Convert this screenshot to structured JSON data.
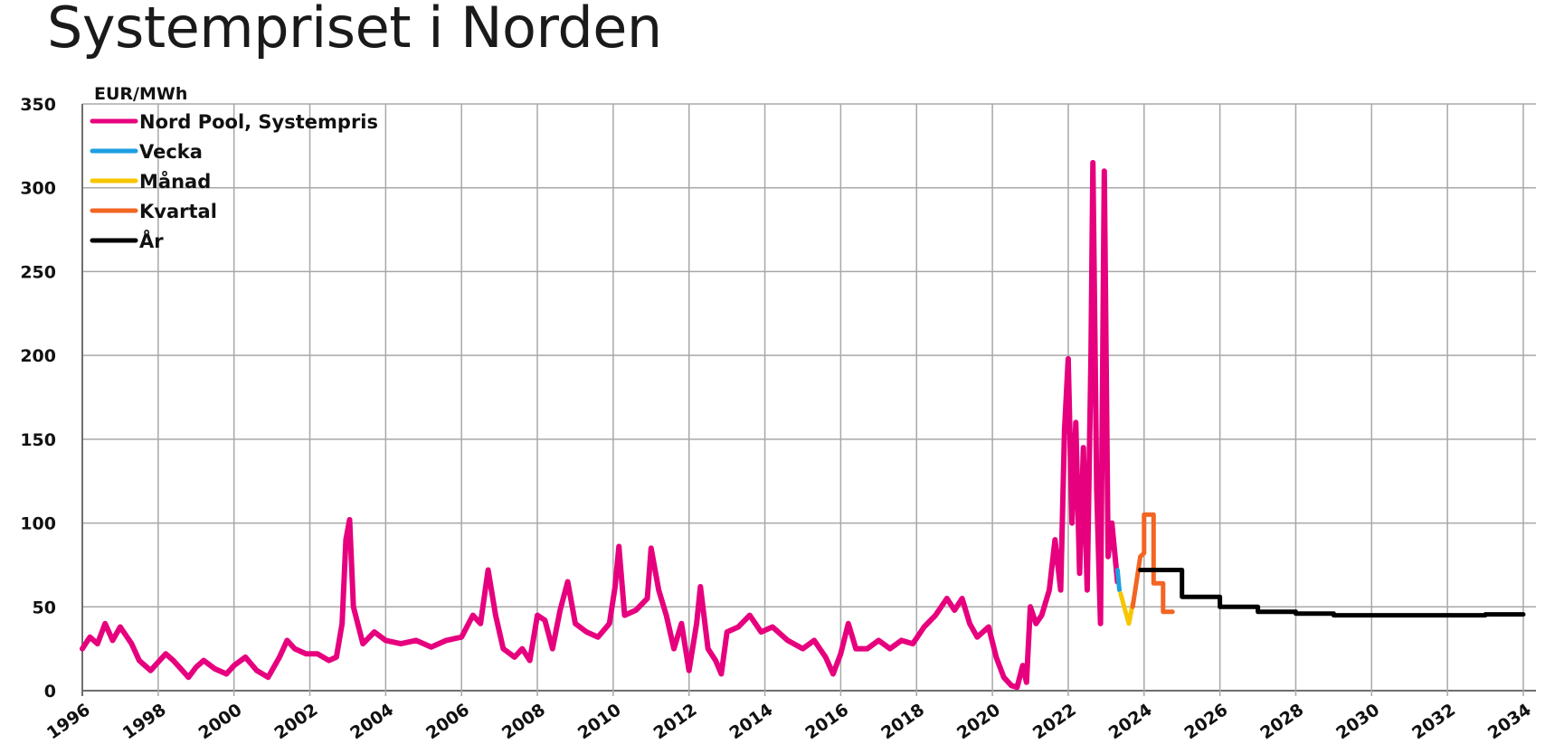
{
  "title": "Systempriset i Norden",
  "chart_data": {
    "type": "line",
    "title": "Systempriset i Norden",
    "unit_label": "EUR/MWh",
    "xlim": [
      1996,
      2034
    ],
    "ylim": [
      0,
      350
    ],
    "y_ticks": [
      0,
      50,
      100,
      150,
      200,
      250,
      300,
      350
    ],
    "x_ticks": [
      1996,
      1998,
      2000,
      2002,
      2004,
      2006,
      2008,
      2010,
      2012,
      2014,
      2016,
      2018,
      2020,
      2022,
      2024,
      2026,
      2028,
      2030,
      2032,
      2034
    ],
    "grid": true,
    "legend_position": "top-left",
    "series": [
      {
        "name": "Nord Pool, Systempris",
        "color": "#e6007e",
        "points": [
          [
            1996.0,
            25
          ],
          [
            1996.2,
            32
          ],
          [
            1996.4,
            28
          ],
          [
            1996.6,
            40
          ],
          [
            1996.8,
            30
          ],
          [
            1997.0,
            38
          ],
          [
            1997.3,
            28
          ],
          [
            1997.5,
            18
          ],
          [
            1997.8,
            12
          ],
          [
            1998.0,
            17
          ],
          [
            1998.2,
            22
          ],
          [
            1998.4,
            18
          ],
          [
            1998.6,
            13
          ],
          [
            1998.8,
            8
          ],
          [
            1999.0,
            14
          ],
          [
            1999.2,
            18
          ],
          [
            1999.5,
            13
          ],
          [
            1999.8,
            10
          ],
          [
            2000.0,
            15
          ],
          [
            2000.3,
            20
          ],
          [
            2000.6,
            12
          ],
          [
            2000.9,
            8
          ],
          [
            2001.2,
            20
          ],
          [
            2001.4,
            30
          ],
          [
            2001.6,
            25
          ],
          [
            2001.9,
            22
          ],
          [
            2002.2,
            22
          ],
          [
            2002.5,
            18
          ],
          [
            2002.7,
            20
          ],
          [
            2002.85,
            40
          ],
          [
            2002.95,
            90
          ],
          [
            2003.05,
            102
          ],
          [
            2003.15,
            50
          ],
          [
            2003.4,
            28
          ],
          [
            2003.7,
            35
          ],
          [
            2004.0,
            30
          ],
          [
            2004.4,
            28
          ],
          [
            2004.8,
            30
          ],
          [
            2005.2,
            26
          ],
          [
            2005.6,
            30
          ],
          [
            2006.0,
            32
          ],
          [
            2006.3,
            45
          ],
          [
            2006.5,
            40
          ],
          [
            2006.7,
            72
          ],
          [
            2006.9,
            45
          ],
          [
            2007.1,
            25
          ],
          [
            2007.4,
            20
          ],
          [
            2007.6,
            25
          ],
          [
            2007.8,
            18
          ],
          [
            2008.0,
            45
          ],
          [
            2008.2,
            42
          ],
          [
            2008.4,
            25
          ],
          [
            2008.6,
            48
          ],
          [
            2008.8,
            65
          ],
          [
            2009.0,
            40
          ],
          [
            2009.3,
            35
          ],
          [
            2009.6,
            32
          ],
          [
            2009.9,
            40
          ],
          [
            2010.05,
            62
          ],
          [
            2010.15,
            86
          ],
          [
            2010.3,
            45
          ],
          [
            2010.6,
            48
          ],
          [
            2010.9,
            55
          ],
          [
            2011.0,
            85
          ],
          [
            2011.2,
            60
          ],
          [
            2011.4,
            45
          ],
          [
            2011.6,
            25
          ],
          [
            2011.8,
            40
          ],
          [
            2012.0,
            12
          ],
          [
            2012.2,
            40
          ],
          [
            2012.3,
            62
          ],
          [
            2012.5,
            25
          ],
          [
            2012.7,
            18
          ],
          [
            2012.85,
            10
          ],
          [
            2013.0,
            35
          ],
          [
            2013.3,
            38
          ],
          [
            2013.6,
            45
          ],
          [
            2013.9,
            35
          ],
          [
            2014.2,
            38
          ],
          [
            2014.6,
            30
          ],
          [
            2015.0,
            25
          ],
          [
            2015.3,
            30
          ],
          [
            2015.6,
            20
          ],
          [
            2015.8,
            10
          ],
          [
            2016.0,
            22
          ],
          [
            2016.2,
            40
          ],
          [
            2016.4,
            25
          ],
          [
            2016.7,
            25
          ],
          [
            2017.0,
            30
          ],
          [
            2017.3,
            25
          ],
          [
            2017.6,
            30
          ],
          [
            2017.9,
            28
          ],
          [
            2018.2,
            38
          ],
          [
            2018.5,
            45
          ],
          [
            2018.8,
            55
          ],
          [
            2019.0,
            48
          ],
          [
            2019.2,
            55
          ],
          [
            2019.4,
            40
          ],
          [
            2019.6,
            32
          ],
          [
            2019.9,
            38
          ],
          [
            2020.1,
            20
          ],
          [
            2020.3,
            8
          ],
          [
            2020.5,
            3
          ],
          [
            2020.65,
            2
          ],
          [
            2020.8,
            15
          ],
          [
            2020.9,
            5
          ],
          [
            2021.0,
            50
          ],
          [
            2021.15,
            40
          ],
          [
            2021.3,
            45
          ],
          [
            2021.5,
            60
          ],
          [
            2021.65,
            90
          ],
          [
            2021.8,
            60
          ],
          [
            2021.9,
            155
          ],
          [
            2022.0,
            198
          ],
          [
            2022.1,
            100
          ],
          [
            2022.2,
            160
          ],
          [
            2022.3,
            70
          ],
          [
            2022.4,
            145
          ],
          [
            2022.5,
            60
          ],
          [
            2022.6,
            200
          ],
          [
            2022.65,
            315
          ],
          [
            2022.75,
            120
          ],
          [
            2022.85,
            40
          ],
          [
            2022.95,
            310
          ],
          [
            2023.05,
            80
          ],
          [
            2023.15,
            100
          ],
          [
            2023.3,
            65
          ]
        ]
      },
      {
        "name": "Vecka",
        "color": "#1ea0e0",
        "points": [
          [
            2023.3,
            72
          ],
          [
            2023.35,
            60
          ]
        ]
      },
      {
        "name": "Månad",
        "color": "#f7c600",
        "points": [
          [
            2023.38,
            58
          ],
          [
            2023.5,
            48
          ],
          [
            2023.6,
            40
          ],
          [
            2023.7,
            52
          ]
        ]
      },
      {
        "name": "Kvartal",
        "color": "#f26522",
        "points": [
          [
            2023.7,
            50
          ],
          [
            2023.9,
            80
          ],
          [
            2024.0,
            82
          ],
          [
            2024.0,
            105
          ],
          [
            2024.25,
            105
          ],
          [
            2024.25,
            64
          ],
          [
            2024.5,
            64
          ],
          [
            2024.5,
            47
          ],
          [
            2024.75,
            47
          ]
        ]
      },
      {
        "name": "År",
        "color": "#000000",
        "points": [
          [
            2023.9,
            72
          ],
          [
            2025.0,
            72
          ],
          [
            2025.0,
            56
          ],
          [
            2026.0,
            56
          ],
          [
            2026.0,
            50
          ],
          [
            2027.0,
            50
          ],
          [
            2027.0,
            47
          ],
          [
            2028.0,
            47
          ],
          [
            2028.0,
            46
          ],
          [
            2029.0,
            46
          ],
          [
            2029.0,
            45
          ],
          [
            2033.0,
            45
          ],
          [
            2033.0,
            45.5
          ],
          [
            2034.0,
            45.5
          ]
        ]
      }
    ]
  }
}
